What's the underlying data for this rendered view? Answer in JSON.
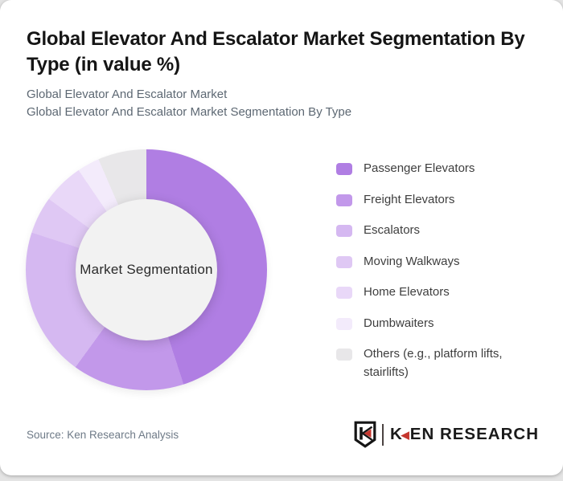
{
  "page": {
    "title": "Global Elevator And Escalator Market Segmentation By Type (in value %)",
    "subtitle_line1": "Global Elevator And Escalator Market",
    "subtitle_line2": "Global Elevator And Escalator Market Segmentation By Type",
    "source": "Source: Ken Research Analysis"
  },
  "logo": {
    "brand": "KEN RESEARCH",
    "monogram": "K",
    "accent_color": "#c5362e",
    "ink_color": "#1a1a1a"
  },
  "chart_data": {
    "type": "pie",
    "variant": "donut",
    "title": "Global Elevator And Escalator Market Segmentation By Type (in value %)",
    "center_label": "Market Segmentation",
    "units": "value %",
    "legend_position": "right",
    "start_angle_deg": 0,
    "direction": "clockwise",
    "categories": [
      "Passenger Elevators",
      "Freight Elevators",
      "Escalators",
      "Moving Walkways",
      "Home Elevators",
      "Dumbwaiters",
      "Others (e.g., platform lifts, stairlifts)"
    ],
    "values": [
      45,
      15,
      20,
      5,
      5.5,
      3,
      6.5
    ],
    "colors": [
      "#b07ee3",
      "#c298ea",
      "#d5b8f1",
      "#dfc8f4",
      "#e9d8f8",
      "#f3ebfb",
      "#e8e7e9"
    ],
    "hole_color": "#f2f2f2"
  }
}
